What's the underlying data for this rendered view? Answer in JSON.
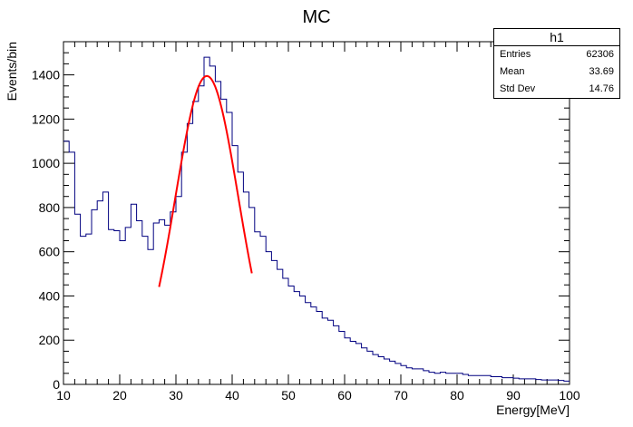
{
  "chart_data": {
    "type": "histogram",
    "title": "MC",
    "xlabel": "Energy[MeV]",
    "ylabel": "Events/bin",
    "xlim": [
      10,
      100
    ],
    "ylim": [
      0,
      1550
    ],
    "xticks": [
      10,
      20,
      30,
      40,
      50,
      60,
      70,
      80,
      90,
      100
    ],
    "yticks": [
      0,
      200,
      400,
      600,
      800,
      1000,
      1200,
      1400
    ],
    "bin_width": 1,
    "bin_starts": [
      10,
      11,
      12,
      13,
      14,
      15,
      16,
      17,
      18,
      19,
      20,
      21,
      22,
      23,
      24,
      25,
      26,
      27,
      28,
      29,
      30,
      31,
      32,
      33,
      34,
      35,
      36,
      37,
      38,
      39,
      40,
      41,
      42,
      43,
      44,
      45,
      46,
      47,
      48,
      49,
      50,
      51,
      52,
      53,
      54,
      55,
      56,
      57,
      58,
      59,
      60,
      61,
      62,
      63,
      64,
      65,
      66,
      67,
      68,
      69,
      70,
      71,
      72,
      73,
      74,
      75,
      76,
      77,
      78,
      79,
      80,
      81,
      82,
      83,
      84,
      85,
      86,
      87,
      88,
      89,
      90,
      91,
      92,
      93,
      94,
      95,
      96,
      97,
      98,
      99
    ],
    "values": [
      1100,
      1050,
      770,
      670,
      680,
      790,
      830,
      870,
      700,
      695,
      650,
      710,
      815,
      740,
      670,
      610,
      730,
      745,
      720,
      780,
      850,
      1050,
      1180,
      1280,
      1350,
      1480,
      1440,
      1370,
      1290,
      1230,
      1080,
      960,
      870,
      800,
      690,
      670,
      600,
      560,
      520,
      480,
      445,
      420,
      400,
      370,
      350,
      330,
      300,
      290,
      265,
      240,
      210,
      195,
      185,
      165,
      150,
      135,
      125,
      115,
      105,
      95,
      85,
      75,
      70,
      70,
      62,
      55,
      50,
      55,
      50,
      50,
      50,
      45,
      40,
      40,
      40,
      40,
      35,
      35,
      30,
      30,
      28,
      25,
      25,
      25,
      22,
      20,
      20,
      20,
      18,
      15
    ],
    "fit": {
      "function": "gaus",
      "color": "#ff0000",
      "x_range": [
        27,
        43.5
      ],
      "constant": 1395,
      "mean": 35.5,
      "sigma": 5.6
    },
    "stats": {
      "name": "h1",
      "rows": [
        {
          "label": "Entries",
          "value": "62306"
        },
        {
          "label": "Mean",
          "value": "33.69"
        },
        {
          "label": "Std Dev",
          "value": "14.76"
        }
      ]
    },
    "colors": {
      "histogram": "#000080",
      "fit": "#ff0000",
      "axes": "#000000"
    }
  }
}
